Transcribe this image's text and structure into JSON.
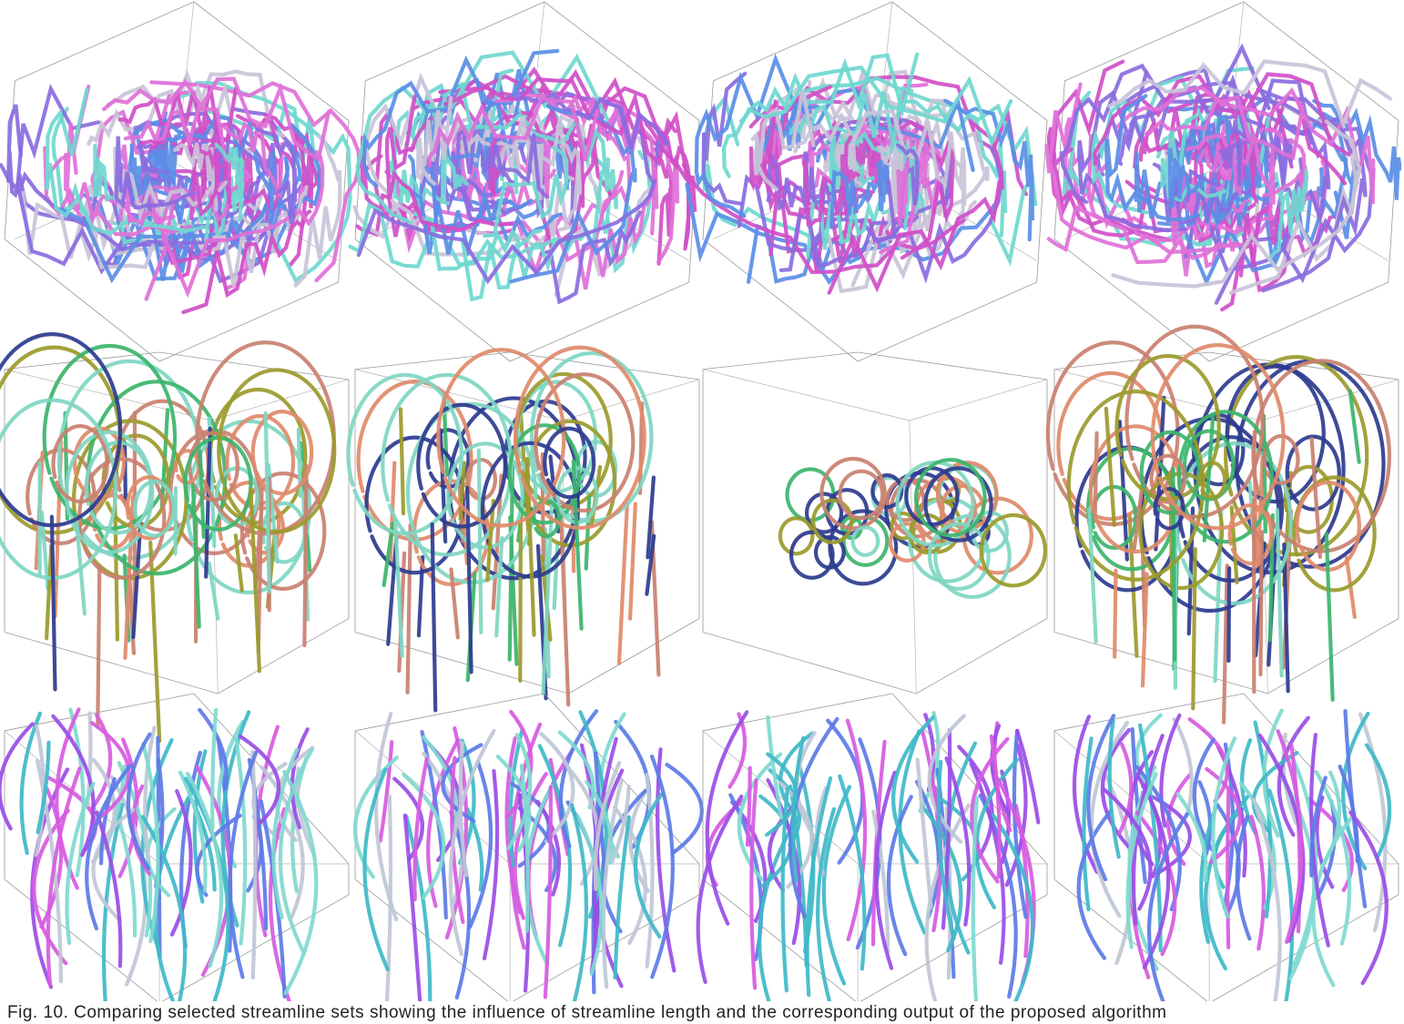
{
  "figure": {
    "caption": "Fig. 10.  Comparing selected streamline sets showing the influence of streamline length and the corresponding output of the proposed algorithm",
    "rows": [
      {
        "palette": [
          "#e070d8",
          "#8a6de0",
          "#5a8ee6",
          "#6fd8cf",
          "#c9c3d8",
          "#d04fc8"
        ],
        "style": "vortex-cube"
      },
      {
        "palette": [
          "#9b9a2c",
          "#3cb46b",
          "#e08a6a",
          "#c98070",
          "#2d3b8f",
          "#7fd6c2"
        ],
        "style": "spiral-cube"
      },
      {
        "palette": [
          "#9a4de6",
          "#d65be0",
          "#3fb8c8",
          "#7fd9cf",
          "#5c7be6",
          "#bfc7d6"
        ],
        "style": "flat-box"
      }
    ],
    "columns": 4
  }
}
